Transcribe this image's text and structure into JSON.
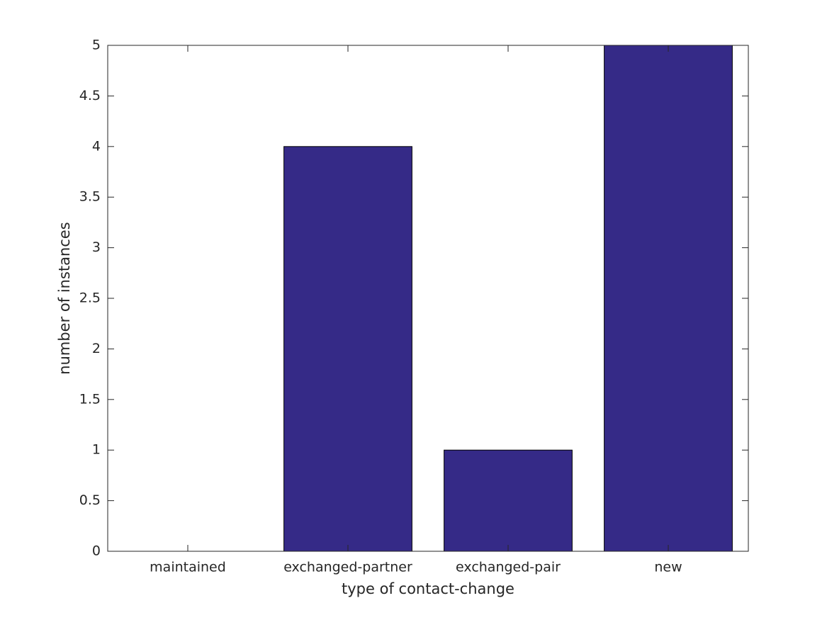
{
  "chart_data": {
    "type": "bar",
    "x_label": "type of contact-change",
    "y_label": "number of instances",
    "categories": [
      "maintained",
      "exchanged-partner",
      "exchanged-pair",
      "new"
    ],
    "values": [
      0,
      4,
      1,
      5
    ],
    "color": "#352a87",
    "ylim": [
      0,
      5
    ],
    "yticks": [
      0,
      0.5,
      1,
      1.5,
      2,
      2.5,
      3,
      3.5,
      4,
      4.5,
      5
    ],
    "grid": false
  }
}
